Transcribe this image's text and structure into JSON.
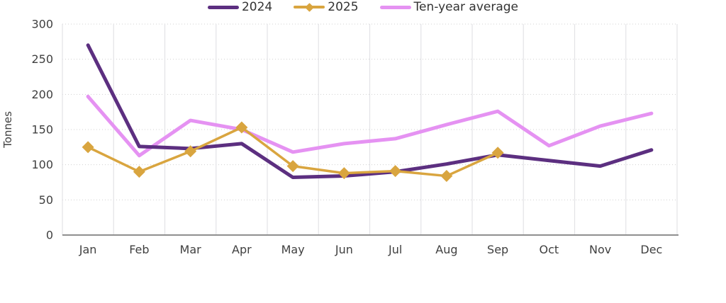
{
  "chart_data": {
    "type": "line",
    "title": "",
    "ylabel": "Tonnes",
    "xlabel": "",
    "ylim": [
      0,
      300
    ],
    "yticks": [
      0,
      50,
      100,
      150,
      200,
      250,
      300
    ],
    "grid": true,
    "legend_position": "bottom",
    "categories": [
      "Jan",
      "Feb",
      "Mar",
      "Apr",
      "May",
      "Jun",
      "Jul",
      "Aug",
      "Sep",
      "Oct",
      "Nov",
      "Dec"
    ],
    "series": [
      {
        "name": "2024",
        "color": "#5c2f80",
        "marker": "none",
        "values": [
          270,
          126,
          123,
          130,
          82,
          84,
          90,
          101,
          114,
          106,
          98,
          121
        ]
      },
      {
        "name": "2025",
        "color": "#d9a53f",
        "marker": "diamond",
        "values": [
          125,
          90,
          119,
          153,
          98,
          88,
          91,
          84,
          117
        ]
      },
      {
        "name": "Ten-year average",
        "color": "#e592f2",
        "marker": "none",
        "values": [
          197,
          113,
          163,
          150,
          118,
          130,
          137,
          157,
          176,
          127,
          155,
          173
        ]
      }
    ]
  }
}
